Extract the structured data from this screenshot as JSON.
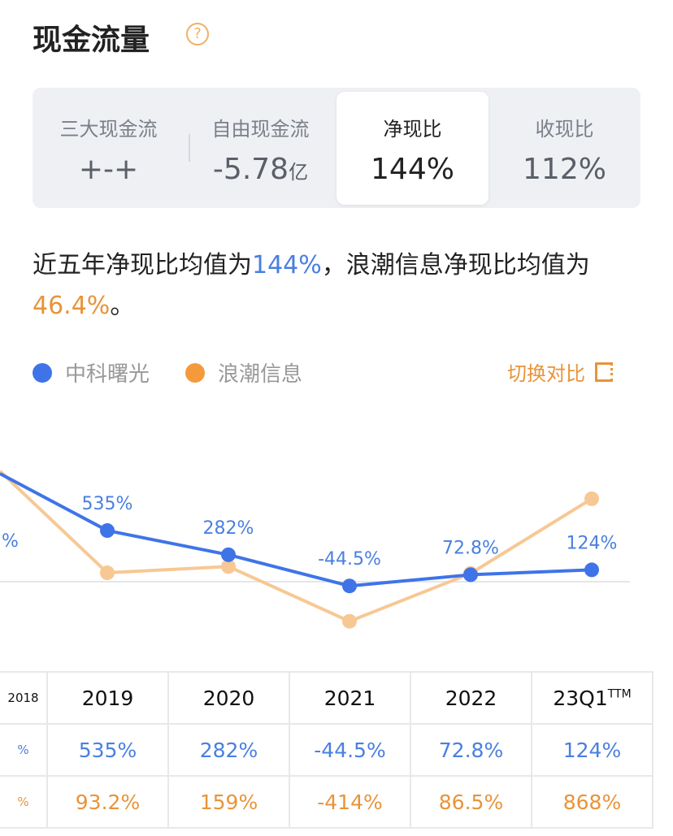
{
  "header": {
    "title": "现金流量",
    "help_icon": "question-circle-icon"
  },
  "metrics": [
    {
      "label": "三大现金流",
      "value": "+-+",
      "unit": ""
    },
    {
      "label": "自由现金流",
      "value": "-5.78",
      "unit": "亿"
    },
    {
      "label": "净现比",
      "value": "144%",
      "unit": "",
      "active": true
    },
    {
      "label": "收现比",
      "value": "112%",
      "unit": ""
    }
  ],
  "summary": {
    "p1": "近五年净现比均值为",
    "v1": "144%",
    "p2": "，浪潮信息净现比均值为",
    "v2": "46.4%",
    "p3": "。"
  },
  "legend": {
    "items": [
      {
        "name": "中科曙光",
        "color": "#3f74e8"
      },
      {
        "name": "浪潮信息",
        "color": "#f49a3b"
      }
    ],
    "switch_label": "切换对比",
    "switch_icon": "switch-compare-icon"
  },
  "chart_data": {
    "type": "line",
    "categories": [
      "2018",
      "2019",
      "2020",
      "2021",
      "2022",
      "23Q1TTM"
    ],
    "series": [
      {
        "name": "中科曙光",
        "color": "#3f74e8",
        "values": [
          null,
          535,
          282,
          -44.5,
          72.8,
          124
        ],
        "labels": [
          "%",
          "535%",
          "282%",
          "-44.5%",
          "72.8%",
          "124%"
        ]
      },
      {
        "name": "浪潮信息",
        "color": "#f7c894",
        "values": [
          null,
          93.2,
          159,
          -414,
          86.5,
          868
        ]
      }
    ],
    "zero_line": true,
    "grid": false
  },
  "table": {
    "headers": [
      "2018",
      "2019",
      "2020",
      "2021",
      "2022",
      "23Q1"
    ],
    "header_suffix": "TTM",
    "rows": [
      {
        "cells": [
          "%",
          "535%",
          "282%",
          "-44.5%",
          "72.8%",
          "124%"
        ]
      },
      {
        "cells": [
          "%",
          "93.2%",
          "159%",
          "-414%",
          "86.5%",
          "868%"
        ]
      }
    ]
  }
}
